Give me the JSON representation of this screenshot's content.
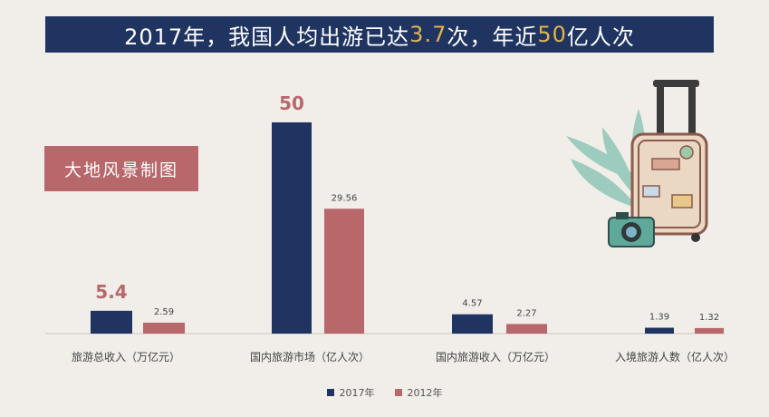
{
  "banner": {
    "part1": "2017年，我国人均出游已达",
    "highlight1": "3.7",
    "part2": "次，年近",
    "highlight2": "50",
    "part3": "亿人次"
  },
  "badge": {
    "text": "大地风景制图"
  },
  "colors": {
    "series_2017": "#1f3461",
    "series_2012": "#b8676b",
    "banner_bg": "#1f3461",
    "highlight": "#e3b447",
    "background": "#f1eeea"
  },
  "chart_data": {
    "type": "bar",
    "categories": [
      "旅游总收入（万亿元）",
      "国内旅游市场（亿人次）",
      "国内旅游收入（万亿元）",
      "入境旅游人数（亿人次）"
    ],
    "series": [
      {
        "name": "2017年",
        "values": [
          5.4,
          50,
          4.57,
          1.39
        ],
        "labels": [
          "5.4",
          "50",
          "4.57",
          "1.39"
        ]
      },
      {
        "name": "2012年",
        "values": [
          2.59,
          29.56,
          2.27,
          1.32
        ],
        "labels": [
          "2.59",
          "29.56",
          "2.27",
          "1.32"
        ]
      }
    ],
    "legend_position": "bottom",
    "grid": false
  }
}
